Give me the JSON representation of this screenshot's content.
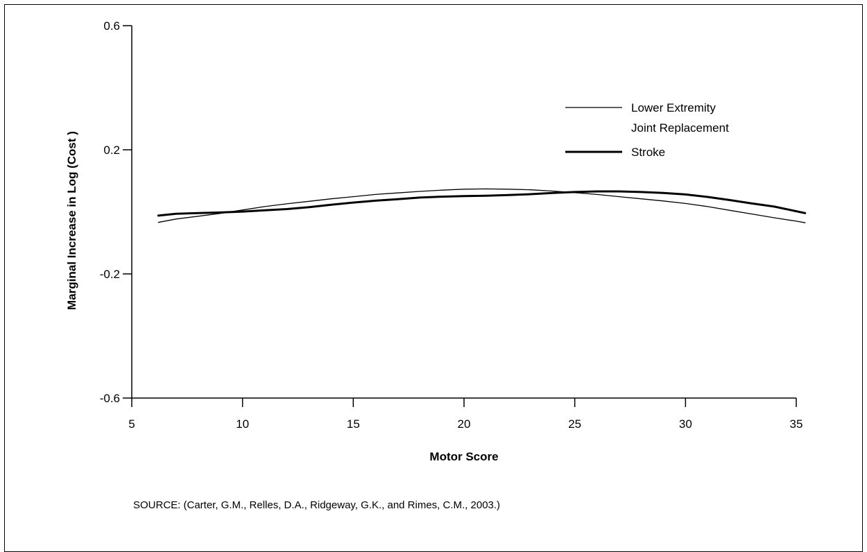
{
  "chart_data": {
    "type": "line",
    "title": "",
    "xlabel": "Motor Score",
    "ylabel": "Marginal Increase in Log (Cost )",
    "xlim": [
      5,
      35
    ],
    "ylim": [
      -0.6,
      0.6
    ],
    "x_ticks": [
      5,
      10,
      15,
      20,
      25,
      30,
      35
    ],
    "x_tick_labels": [
      "5",
      "10",
      "15",
      "20",
      "25",
      "30",
      "35"
    ],
    "y_ticks": [
      0.6,
      0.2,
      -0.2,
      -0.6
    ],
    "y_tick_labels": [
      "0.6",
      "0.2",
      "-0.2",
      "-0.6"
    ],
    "grid": false,
    "legend_position": "top-right",
    "series": [
      {
        "name": "Lower Extremity Joint Replacement",
        "label_lines": [
          "Lower Extremity",
          "Joint Replacement"
        ],
        "style": "thin",
        "x": [
          6.2,
          7,
          8,
          9,
          10,
          11,
          12,
          13,
          14,
          15,
          16,
          17,
          18,
          19,
          20,
          21,
          22,
          23,
          24,
          25,
          26,
          27,
          28,
          29,
          30,
          31,
          32,
          33,
          34,
          35,
          35.4
        ],
        "y": [
          -0.034,
          -0.023,
          -0.014,
          -0.005,
          0.006,
          0.017,
          0.026,
          0.034,
          0.042,
          0.049,
          0.056,
          0.061,
          0.066,
          0.07,
          0.073,
          0.074,
          0.073,
          0.071,
          0.067,
          0.062,
          0.056,
          0.049,
          0.042,
          0.035,
          0.027,
          0.017,
          0.005,
          -0.007,
          -0.019,
          -0.03,
          -0.035
        ]
      },
      {
        "name": "Stroke",
        "label_lines": [
          "Stroke"
        ],
        "style": "thick",
        "x": [
          6.2,
          7,
          8,
          9,
          10,
          11,
          12,
          13,
          14,
          15,
          16,
          17,
          18,
          19,
          20,
          21,
          22,
          23,
          24,
          25,
          26,
          27,
          28,
          29,
          30,
          31,
          32,
          33,
          34,
          35,
          35.4
        ],
        "y": [
          -0.012,
          -0.006,
          -0.004,
          -0.002,
          0.001,
          0.005,
          0.009,
          0.015,
          0.023,
          0.03,
          0.036,
          0.041,
          0.046,
          0.049,
          0.051,
          0.052,
          0.054,
          0.057,
          0.061,
          0.064,
          0.066,
          0.066,
          0.064,
          0.061,
          0.056,
          0.048,
          0.038,
          0.027,
          0.017,
          0.002,
          -0.004
        ]
      }
    ]
  },
  "source_note": "SOURCE: (Carter, G.M., Relles, D.A., Ridgeway, G.K., and Rimes, C.M., 2003.)"
}
